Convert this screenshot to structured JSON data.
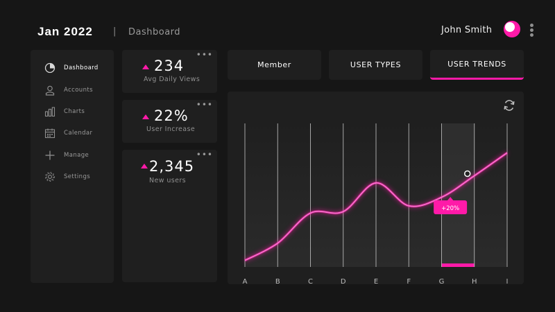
{
  "header": {
    "month": "Jan 2022",
    "separator": "|",
    "page": "Dashboard",
    "user_name": "John Smith"
  },
  "sidebar": {
    "items": [
      {
        "label": "Dashboard",
        "icon": "pie-chart-icon",
        "active": true
      },
      {
        "label": "Accounts",
        "icon": "user-icon",
        "active": false
      },
      {
        "label": "Charts",
        "icon": "bar-chart-icon",
        "active": false
      },
      {
        "label": "Calendar",
        "icon": "calendar-icon",
        "active": false
      },
      {
        "label": "Manage",
        "icon": "plus-icon",
        "active": false
      },
      {
        "label": "Settings",
        "icon": "gear-icon",
        "active": false
      }
    ]
  },
  "stats": [
    {
      "value": "234",
      "label": "Avg Daily Views",
      "more": "•••"
    },
    {
      "value": "22%",
      "label": "User Increase",
      "more": "•••"
    },
    {
      "value": "2,345",
      "label": "New users",
      "more": "•••"
    }
  ],
  "tabs": [
    {
      "label": "Member",
      "active": false
    },
    {
      "label": "USER TYPES",
      "active": false
    },
    {
      "label": "USER TRENDS",
      "active": true
    }
  ],
  "colors": {
    "accent": "#ff1aa8",
    "background": "#161616",
    "panel": "#1f1f1f"
  },
  "chart_data": {
    "type": "line",
    "categories": [
      "A",
      "B",
      "C",
      "D",
      "E",
      "F",
      "G",
      "H",
      "I"
    ],
    "highlight_range": [
      "G",
      "H"
    ],
    "tooltip": "+20%",
    "refresh_icon": "refresh-icon",
    "series": [
      {
        "values": [
          0.06,
          0.18,
          0.39,
          0.4,
          0.6,
          0.44,
          0.5,
          0.65,
          0.81
        ]
      }
    ],
    "ylim": [
      0,
      1
    ],
    "grid": true,
    "legend": "none"
  }
}
